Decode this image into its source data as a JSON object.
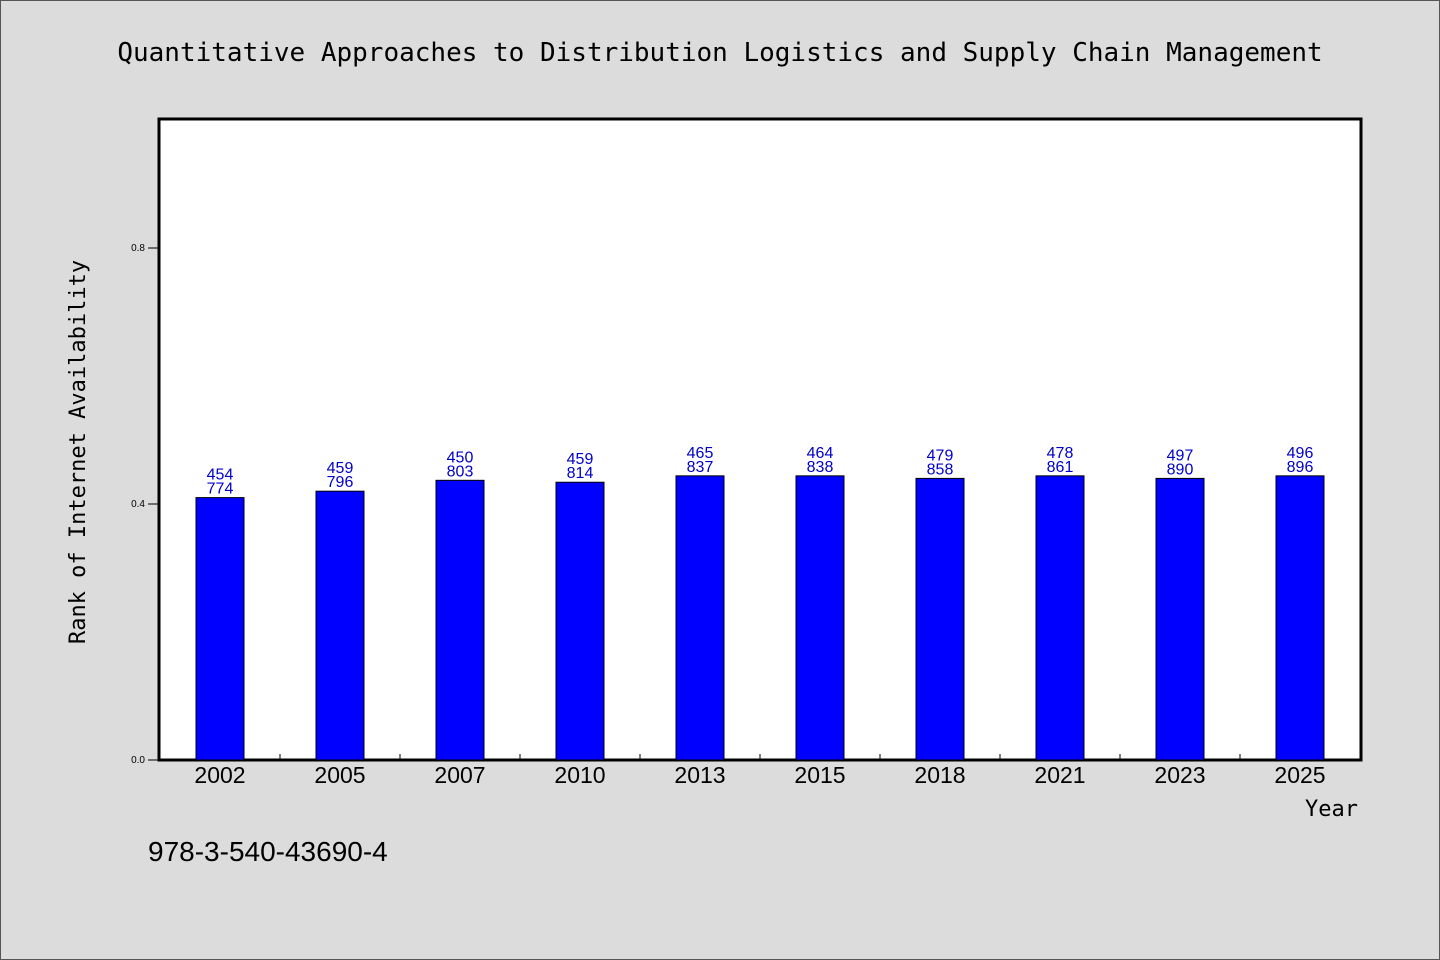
{
  "chart_data": {
    "type": "bar",
    "title": "Quantitative Approaches to Distribution Logistics and Supply Chain Management",
    "xlabel": "Year",
    "ylabel": "Rank of Internet Availability",
    "categories": [
      "2002",
      "2005",
      "2007",
      "2010",
      "2013",
      "2015",
      "2018",
      "2021",
      "2023",
      "2025"
    ],
    "values": [
      0.41,
      0.42,
      0.437,
      0.434,
      0.444,
      0.444,
      0.44,
      0.444,
      0.44,
      0.444
    ],
    "data_labels": [
      [
        "454",
        "774"
      ],
      [
        "459",
        "796"
      ],
      [
        "450",
        "803"
      ],
      [
        "459",
        "814"
      ],
      [
        "465",
        "837"
      ],
      [
        "464",
        "838"
      ],
      [
        "479",
        "858"
      ],
      [
        "478",
        "861"
      ],
      [
        "497",
        "890"
      ],
      [
        "496",
        "896"
      ]
    ],
    "ylim": [
      0.0,
      1.0
    ],
    "yticks": [
      0.0,
      0.4,
      0.8
    ],
    "ytick_labels": [
      "0.0",
      "0.4",
      "0.8"
    ],
    "grid": false,
    "bar_color": "#0000ff",
    "label_color": "#0000cc"
  },
  "footer": {
    "code": "978-3-540-43690-4"
  }
}
